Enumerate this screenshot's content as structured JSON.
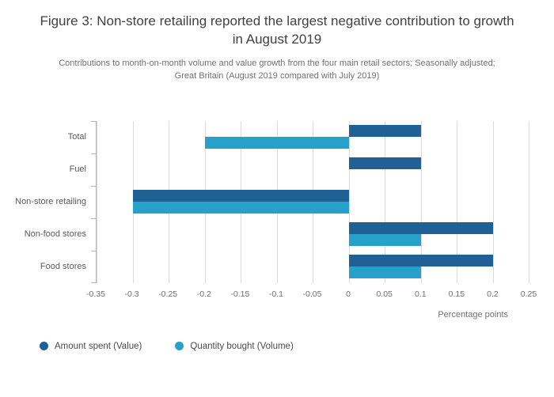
{
  "title": "Figure 3: Non-store retailing reported the largest negative contribution to growth in August 2019",
  "subtitle_line1": "Contributions to month-on-month volume and value growth from the four main retail sectors; Seasonally adjusted;",
  "subtitle_line2": "Great Britain (August 2019 compared with July 2019)",
  "chart_data": {
    "type": "bar",
    "orientation": "horizontal",
    "categories": [
      "Total",
      "Fuel",
      "Non-store retailing",
      "Non-food stores",
      "Food stores"
    ],
    "series": [
      {
        "name": "Amount spent (Value)",
        "color": "#206095",
        "values": [
          0.1,
          0.1,
          -0.3,
          0.2,
          0.2
        ]
      },
      {
        "name": "Quantity bought (Volume)",
        "color": "#27a0cc",
        "values": [
          -0.2,
          0,
          -0.3,
          0.1,
          0.1
        ]
      }
    ],
    "xlabel": "Percentage points",
    "xlim": [
      -0.35,
      0.25
    ],
    "xticks": [
      -0.35,
      -0.3,
      -0.25,
      -0.2,
      -0.15,
      -0.1,
      -0.05,
      0,
      0.05,
      0.1,
      0.15,
      0.2,
      0.25
    ],
    "grid": true,
    "legend_position": "bottom-left",
    "colors": {
      "grid": "#dadada",
      "axis": "#b7b7b7",
      "label": "#707071"
    }
  }
}
